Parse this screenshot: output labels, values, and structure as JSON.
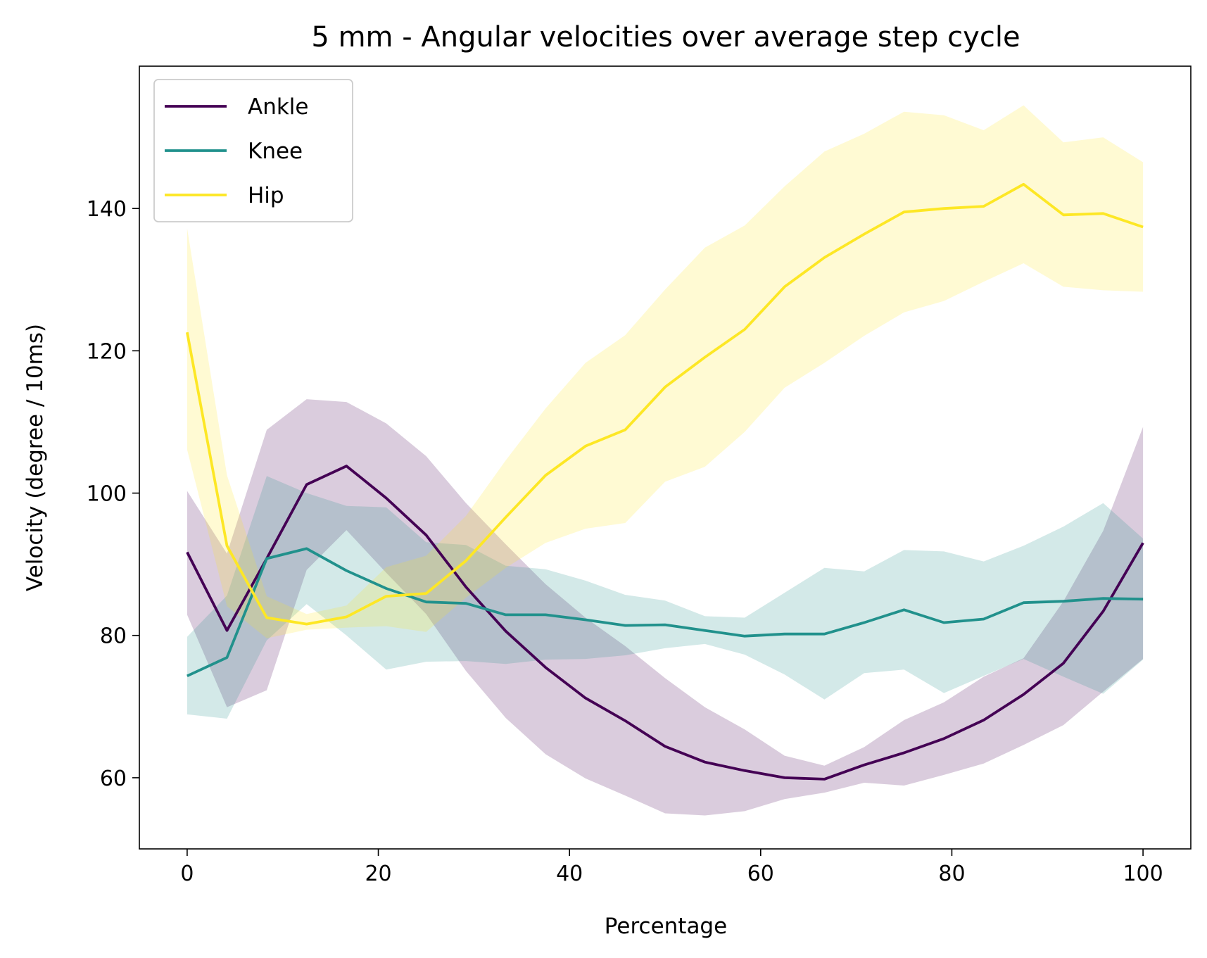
{
  "chart_data": {
    "type": "line",
    "title": "5 mm - Angular velocities over average step cycle",
    "xlabel": "Percentage",
    "ylabel": "Velocity (degree / 10ms)",
    "xlim": [
      -5,
      105
    ],
    "ylim": [
      50,
      160
    ],
    "xticks": [
      0,
      20,
      40,
      60,
      80,
      100
    ],
    "yticks": [
      60,
      80,
      100,
      120,
      140
    ],
    "grid": false,
    "legend_position": "upper-left",
    "x": [
      0,
      4.17,
      8.33,
      12.5,
      16.67,
      20.83,
      25,
      29.17,
      33.33,
      37.5,
      41.67,
      45.83,
      50,
      54.17,
      58.33,
      62.5,
      66.67,
      70.83,
      75,
      79.17,
      83.33,
      87.5,
      91.67,
      95.83,
      100
    ],
    "series": [
      {
        "name": "Ankle",
        "color": "#440154",
        "values": [
          91.7,
          80.7,
          90.8,
          101.2,
          103.8,
          99.3,
          94.1,
          86.8,
          80.6,
          75.5,
          71.2,
          68.0,
          64.4,
          62.2,
          61.0,
          60.0,
          59.8,
          61.8,
          63.5,
          65.5,
          68.1,
          71.7,
          76.1,
          83.4,
          93.0
        ],
        "upper": [
          100.3,
          91.5,
          108.9,
          113.2,
          112.8,
          109.8,
          105.2,
          98.6,
          92.8,
          87.2,
          82.5,
          78.5,
          74.0,
          69.9,
          66.8,
          63.1,
          61.7,
          64.3,
          68.1,
          70.6,
          74.2,
          76.8,
          84.8,
          94.7,
          109.3
        ],
        "lower": [
          82.9,
          69.9,
          72.3,
          89.2,
          94.8,
          88.8,
          83.0,
          75.0,
          68.4,
          63.3,
          59.9,
          57.5,
          55.0,
          54.7,
          55.3,
          57.0,
          57.9,
          59.3,
          58.9,
          60.4,
          62.0,
          64.6,
          67.4,
          72.1,
          76.7
        ]
      },
      {
        "name": "Knee",
        "color": "#21918c",
        "values": [
          74.3,
          76.9,
          90.8,
          92.2,
          89.1,
          86.6,
          84.7,
          84.5,
          82.9,
          82.9,
          82.2,
          81.4,
          81.5,
          80.7,
          79.9,
          80.2,
          80.2,
          81.8,
          83.6,
          81.8,
          82.3,
          84.6,
          84.8,
          85.2,
          85.1
        ],
        "upper": [
          79.8,
          85.6,
          102.4,
          100.0,
          98.2,
          98.0,
          93.1,
          92.7,
          89.8,
          89.3,
          87.7,
          85.7,
          84.9,
          82.7,
          82.5,
          86.0,
          89.5,
          89.0,
          92.0,
          91.8,
          90.4,
          92.6,
          95.3,
          98.6,
          93.6
        ],
        "lower": [
          68.9,
          68.3,
          79.3,
          84.4,
          80.0,
          75.2,
          76.3,
          76.4,
          76.0,
          76.6,
          76.7,
          77.2,
          78.2,
          78.8,
          77.3,
          74.5,
          71.0,
          74.7,
          75.2,
          71.9,
          74.3,
          76.7,
          74.2,
          71.8,
          76.6
        ]
      },
      {
        "name": "Hip",
        "color": "#fde725",
        "values": [
          122.6,
          92.6,
          82.5,
          81.6,
          82.6,
          85.5,
          85.9,
          90.5,
          96.6,
          102.5,
          106.6,
          108.9,
          114.9,
          119.1,
          123.0,
          129.0,
          133.1,
          136.4,
          139.5,
          140.0,
          140.3,
          143.4,
          139.1,
          139.3,
          137.4
        ],
        "upper": [
          137.2,
          102.5,
          85.5,
          83.0,
          84.2,
          89.6,
          91.2,
          96.8,
          104.6,
          111.9,
          118.3,
          122.2,
          128.6,
          134.5,
          137.6,
          143.1,
          148.0,
          150.5,
          153.6,
          153.1,
          151.0,
          154.5,
          149.3,
          150.0,
          146.5
        ],
        "lower": [
          106.1,
          84.1,
          79.6,
          80.8,
          81.1,
          81.3,
          80.5,
          85.3,
          89.5,
          93.0,
          95.0,
          95.8,
          101.6,
          103.7,
          108.6,
          114.8,
          118.3,
          122.1,
          125.4,
          127.0,
          129.7,
          132.3,
          129.0,
          128.5,
          128.3
        ]
      }
    ]
  }
}
